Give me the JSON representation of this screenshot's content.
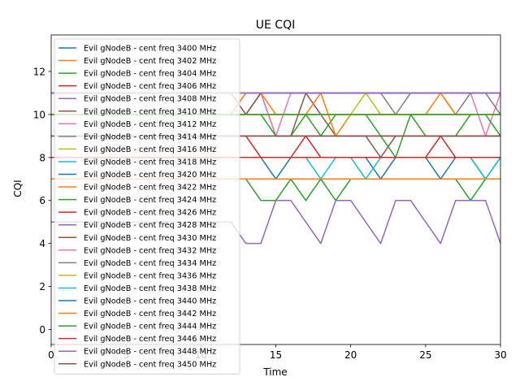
{
  "chart_data": {
    "type": "line",
    "title": "UE CQI",
    "xlabel": "Time",
    "ylabel": "CQI",
    "xlim": [
      0,
      30
    ],
    "ylim": [
      -0.7,
      13.7
    ],
    "x_ticks": [
      0,
      5,
      10,
      15,
      20,
      25,
      30
    ],
    "y_ticks": [
      0,
      2,
      4,
      6,
      8,
      10,
      12
    ],
    "grid": false,
    "legend_position": "upper left",
    "x": [
      0,
      1,
      2,
      3,
      4,
      5,
      6,
      7,
      8,
      9,
      10,
      11,
      12,
      13,
      14,
      15,
      16,
      17,
      18,
      19,
      20,
      21,
      22,
      23,
      24,
      25,
      26,
      27,
      28,
      29,
      30
    ],
    "series": [
      {
        "name": "Evil gNodeB - cent freq 3400 MHz",
        "color": "#1f77b4",
        "values": [
          8,
          8,
          8,
          8,
          8,
          8,
          8,
          8,
          8,
          8,
          8,
          8,
          8,
          8,
          8,
          7,
          8,
          8,
          8,
          8,
          8,
          8,
          7,
          8,
          8,
          8,
          7,
          8,
          8,
          7,
          8
        ]
      },
      {
        "name": "Evil gNodeB - cent freq 3402 MHz",
        "color": "#ff7f0e",
        "values": [
          10,
          10,
          10,
          10,
          10,
          10,
          10,
          10,
          10,
          10,
          10,
          10,
          10,
          10,
          10,
          10,
          10,
          10,
          10,
          10,
          10,
          10,
          10,
          10,
          10,
          10,
          10,
          10,
          10,
          10,
          10
        ]
      },
      {
        "name": "Evil gNodeB - cent freq 3404 MHz",
        "color": "#2ca02c",
        "values": [
          7,
          7,
          7,
          7,
          7,
          7,
          7,
          7,
          7,
          7,
          7,
          7,
          7,
          7,
          6,
          6,
          7,
          6,
          7,
          6,
          7,
          7,
          7,
          7,
          7,
          7,
          7,
          7,
          6,
          7,
          7
        ]
      },
      {
        "name": "Evil gNodeB - cent freq 3406 MHz",
        "color": "#d62728",
        "values": [
          9,
          9,
          9,
          9,
          9,
          9,
          9,
          9,
          9,
          9,
          9,
          9,
          9,
          9,
          8,
          8,
          8,
          9,
          8,
          8,
          8,
          8,
          8,
          8,
          8,
          8,
          9,
          8,
          8,
          8,
          8
        ]
      },
      {
        "name": "Evil gNodeB - cent freq 3408 MHz",
        "color": "#9467bd",
        "values": [
          11,
          11,
          11,
          11,
          11,
          11,
          11,
          11,
          11,
          11,
          11,
          11,
          11,
          11,
          11,
          11,
          11,
          11,
          11,
          11,
          11,
          11,
          11,
          11,
          11,
          11,
          11,
          11,
          11,
          11,
          11
        ]
      },
      {
        "name": "Evil gNodeB - cent freq 3410 MHz",
        "color": "#8c564b",
        "values": [
          10,
          10,
          10,
          10,
          10,
          10,
          10,
          10,
          10,
          10,
          10,
          10,
          10,
          10,
          11,
          9,
          9,
          11,
          10,
          9,
          9,
          9,
          8,
          9,
          9,
          9,
          9,
          9,
          9,
          9,
          9
        ]
      },
      {
        "name": "Evil gNodeB - cent freq 3412 MHz",
        "color": "#e377c2",
        "values": [
          11,
          11,
          11,
          11,
          11,
          11,
          11,
          11,
          11,
          11,
          11,
          11,
          11,
          11,
          11,
          9,
          11,
          11,
          11,
          11,
          11,
          11,
          11,
          11,
          11,
          11,
          11,
          11,
          11,
          9,
          11
        ]
      },
      {
        "name": "Evil gNodeB - cent freq 3414 MHz",
        "color": "#7f7f7f",
        "values": [
          10,
          10,
          10,
          10,
          10,
          10,
          10,
          10,
          10,
          10,
          10,
          10,
          10,
          11,
          11,
          11,
          11,
          11,
          11,
          11,
          11,
          11,
          11,
          10,
          11,
          11,
          11,
          10,
          11,
          11,
          10
        ]
      },
      {
        "name": "Evil gNodeB - cent freq 3416 MHz",
        "color": "#bcbd22",
        "values": [
          10,
          10,
          10,
          10,
          10,
          10,
          10,
          10,
          10,
          10,
          10,
          10,
          10,
          10,
          10,
          10,
          10,
          10,
          10,
          10,
          10,
          11,
          10,
          10,
          10,
          10,
          10,
          10,
          10,
          10,
          10
        ]
      },
      {
        "name": "Evil gNodeB - cent freq 3418 MHz",
        "color": "#17becf",
        "values": [
          8,
          8,
          8,
          8,
          8,
          8,
          8,
          8,
          8,
          8,
          8,
          8,
          8,
          8,
          8,
          8,
          8,
          8,
          7,
          8,
          8,
          7,
          8,
          8,
          8,
          8,
          8,
          8,
          8,
          7,
          8
        ]
      },
      {
        "name": "Evil gNodeB - cent freq 3420 MHz",
        "color": "#1f77b4",
        "values": [
          8,
          8,
          8,
          8,
          8,
          8,
          8,
          8,
          8,
          8,
          8,
          8,
          8,
          8,
          8,
          8,
          8,
          8,
          8,
          8,
          8,
          8,
          8,
          8,
          8,
          8,
          8,
          8,
          8,
          8,
          8
        ]
      },
      {
        "name": "Evil gNodeB - cent freq 3422 MHz",
        "color": "#ff7f0e",
        "values": [
          7,
          7,
          7,
          7,
          7,
          7,
          7,
          7,
          7,
          7,
          7,
          7,
          7,
          7,
          7,
          7,
          7,
          7,
          7,
          7,
          7,
          7,
          7,
          7,
          7,
          7,
          7,
          7,
          7,
          7,
          7
        ]
      },
      {
        "name": "Evil gNodeB - cent freq 3424 MHz",
        "color": "#2ca02c",
        "values": [
          10,
          10,
          10,
          10,
          10,
          10,
          10,
          10,
          10,
          10,
          10,
          10,
          10,
          10,
          10,
          9,
          9,
          10,
          9,
          10,
          10,
          10,
          9,
          8,
          10,
          9,
          9,
          9,
          10,
          10,
          9
        ]
      },
      {
        "name": "Evil gNodeB - cent freq 3426 MHz",
        "color": "#d62728",
        "values": [
          9,
          9,
          9,
          9,
          9,
          9,
          9,
          9,
          9,
          9,
          9,
          9,
          9,
          9,
          9,
          9,
          9,
          9,
          9,
          9,
          9,
          9,
          9,
          9,
          9,
          9,
          9,
          9,
          9,
          9,
          9
        ]
      },
      {
        "name": "Evil gNodeB - cent freq 3428 MHz",
        "color": "#9467bd",
        "values": [
          5,
          5,
          5,
          5,
          5,
          5,
          5,
          5,
          5,
          5,
          5,
          5,
          5,
          4,
          4,
          6,
          6,
          5,
          4,
          6,
          6,
          5,
          4,
          6,
          6,
          5,
          4,
          6,
          6,
          6,
          4
        ]
      },
      {
        "name": "Evil gNodeB - cent freq 3430 MHz",
        "color": "#8c564b",
        "values": [
          11,
          11,
          11,
          11,
          11,
          11,
          11,
          11,
          11,
          11,
          11,
          11,
          11,
          10,
          11,
          11,
          11,
          11,
          11,
          11,
          11,
          11,
          11,
          11,
          11,
          11,
          11,
          11,
          11,
          11,
          11
        ]
      },
      {
        "name": "Evil gNodeB - cent freq 3432 MHz",
        "color": "#e377c2",
        "values": [
          10,
          10,
          10,
          10,
          10,
          10,
          10,
          10,
          10,
          10,
          10,
          10,
          10,
          10,
          10,
          10,
          10,
          10,
          10,
          10,
          10,
          10,
          10,
          10,
          10,
          10,
          10,
          10,
          10,
          10,
          10
        ]
      },
      {
        "name": "Evil gNodeB - cent freq 3434 MHz",
        "color": "#7f7f7f",
        "values": [
          9,
          9,
          9,
          9,
          9,
          9,
          9,
          9,
          9,
          9,
          9,
          9,
          9,
          9,
          9,
          9,
          9,
          9,
          9,
          9,
          9,
          9,
          9,
          9,
          9,
          9,
          9,
          9,
          9,
          9,
          9
        ]
      },
      {
        "name": "Evil gNodeB - cent freq 3436 MHz",
        "color": "#bcbd22",
        "values": [
          10,
          10,
          10,
          10,
          10,
          10,
          10,
          10,
          10,
          10,
          10,
          10,
          10,
          10,
          10,
          10,
          10,
          10,
          10,
          10,
          10,
          10,
          10,
          10,
          10,
          10,
          10,
          10,
          10,
          10,
          10
        ]
      },
      {
        "name": "Evil gNodeB - cent freq 3438 MHz",
        "color": "#17becf",
        "values": [
          8,
          8,
          8,
          8,
          8,
          8,
          8,
          8,
          8,
          8,
          8,
          8,
          8,
          8,
          8,
          8,
          8,
          8,
          8,
          8,
          8,
          8,
          8,
          8,
          8,
          8,
          8,
          8,
          8,
          8,
          8
        ]
      },
      {
        "name": "Evil gNodeB - cent freq 3440 MHz",
        "color": "#1f77b4",
        "values": [
          8,
          8,
          8,
          8,
          8,
          8,
          8,
          8,
          8,
          8,
          8,
          8,
          8,
          8,
          8,
          8,
          8,
          8,
          8,
          8,
          8,
          8,
          8,
          8,
          8,
          8,
          8,
          8,
          8,
          8,
          8
        ]
      },
      {
        "name": "Evil gNodeB - cent freq 3442 MHz",
        "color": "#ff7f0e",
        "values": [
          10,
          10,
          10,
          10,
          10,
          10,
          10,
          10,
          10,
          10,
          10,
          10,
          10,
          11,
          11,
          10,
          10,
          10,
          11,
          9,
          10,
          10,
          10,
          10,
          10,
          10,
          11,
          10,
          10,
          10,
          10
        ]
      },
      {
        "name": "Evil gNodeB - cent freq 3444 MHz",
        "color": "#2ca02c",
        "values": [
          10,
          10,
          10,
          10,
          10,
          10,
          10,
          10,
          10,
          10,
          10,
          10,
          10,
          10,
          10,
          10,
          10,
          10,
          10,
          10,
          10,
          10,
          10,
          10,
          10,
          10,
          10,
          10,
          10,
          10,
          10
        ]
      },
      {
        "name": "Evil gNodeB - cent freq 3446 MHz",
        "color": "#d62728",
        "values": [
          8,
          8,
          8,
          8,
          8,
          8,
          8,
          8,
          8,
          8,
          8,
          8,
          8,
          8,
          8,
          8,
          8,
          8,
          8,
          8,
          8,
          8,
          8,
          8,
          8,
          8,
          8,
          8,
          8,
          8,
          8
        ]
      },
      {
        "name": "Evil gNodeB - cent freq 3448 MHz",
        "color": "#9467bd",
        "values": [
          11,
          11,
          11,
          11,
          11,
          11,
          11,
          11,
          11,
          11,
          11,
          11,
          11,
          11,
          11,
          11,
          11,
          11,
          11,
          11,
          11,
          11,
          11,
          11,
          11,
          11,
          11,
          11,
          11,
          11,
          11
        ]
      },
      {
        "name": "Evil gNodeB - cent freq 3450 MHz",
        "color": "#8c564b",
        "values": [
          9,
          9,
          9,
          9,
          9,
          9,
          9,
          9,
          9,
          9,
          9,
          9,
          9,
          9,
          9,
          9,
          9,
          9,
          9,
          9,
          9,
          9,
          9,
          9,
          9,
          9,
          9,
          9,
          9,
          9,
          9
        ]
      }
    ]
  }
}
